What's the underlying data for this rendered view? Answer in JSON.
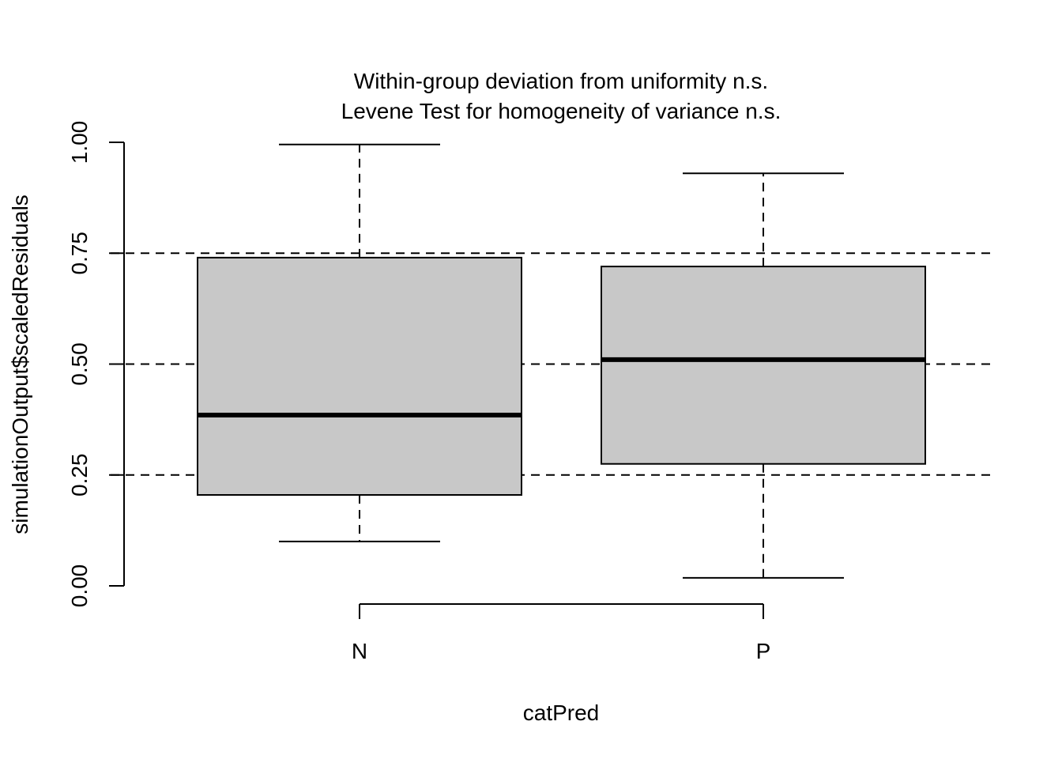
{
  "chart_data": {
    "type": "box",
    "title": "Within-group deviation from uniformity n.s.",
    "subtitle": "Levene Test for homogeneity of variance n.s.",
    "xlabel": "catPred",
    "ylabel": "simulationOutput$scaledResiduals",
    "ylim": [
      0,
      1
    ],
    "yticks": [
      "0.00",
      "0.25",
      "0.50",
      "0.75",
      "1.00"
    ],
    "categories": [
      "N",
      "P"
    ],
    "boxes": [
      {
        "category": "N",
        "min": 0.1,
        "q1": 0.205,
        "median": 0.385,
        "q3": 0.74,
        "max": 0.995
      },
      {
        "category": "P",
        "min": 0.018,
        "q1": 0.275,
        "median": 0.51,
        "q3": 0.72,
        "max": 0.93
      }
    ],
    "reference_lines": [
      0.25,
      0.5,
      0.75
    ],
    "box_fill": "#c8c8c8",
    "line_color": "#000000"
  }
}
